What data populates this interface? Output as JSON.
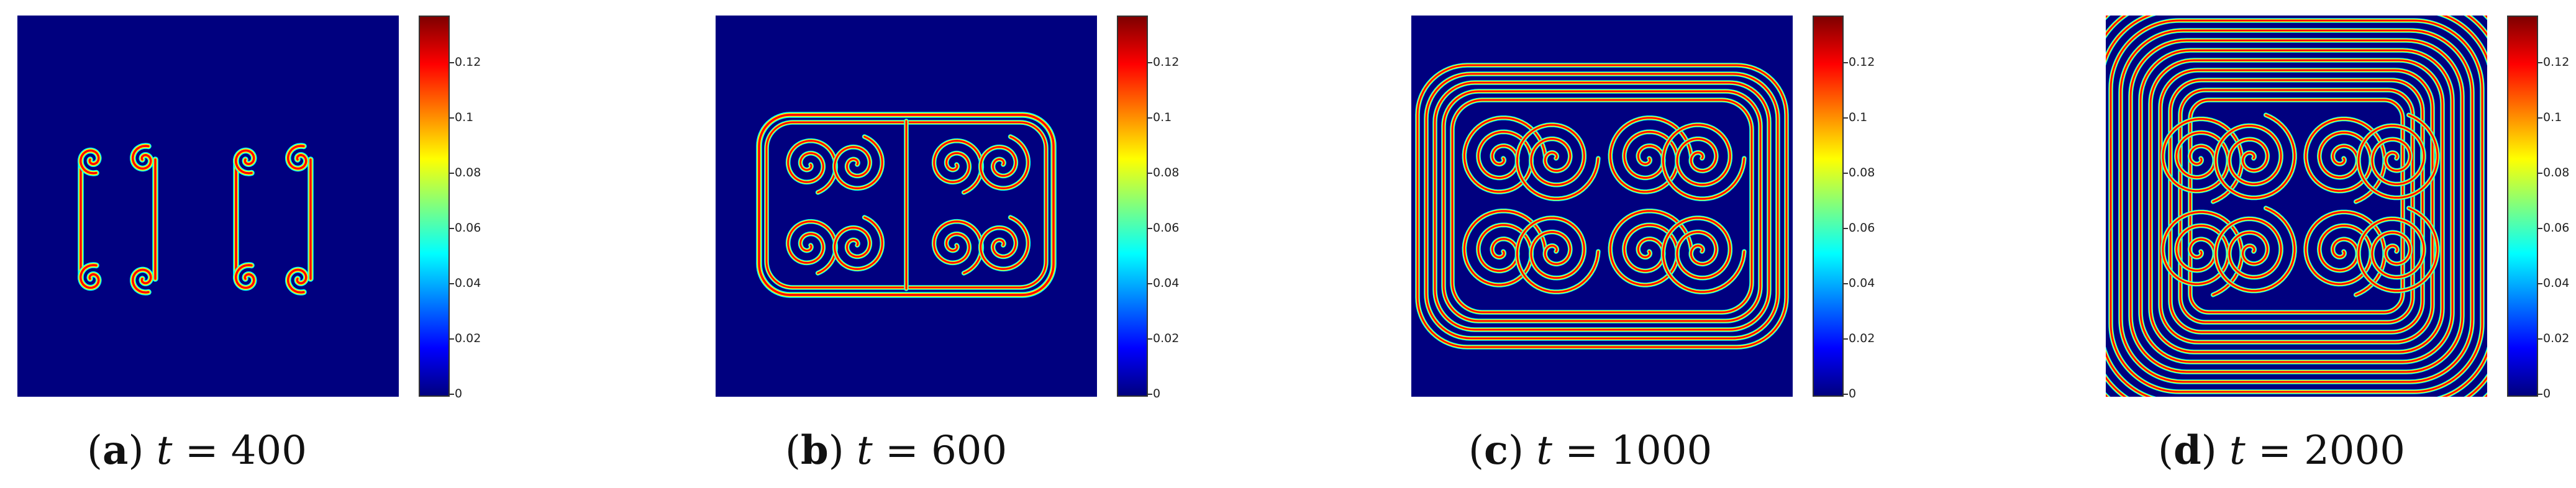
{
  "colorbar": {
    "ticks": [
      "0",
      "0.02",
      "0.04",
      "0.06",
      "0.08",
      "0.1",
      "0.12"
    ],
    "min": 0,
    "max": 0.135,
    "colormap": [
      "#00007f",
      "#0000ff",
      "#007fff",
      "#00ffff",
      "#7fff7f",
      "#ffff00",
      "#ff7f00",
      "#ff0000",
      "#7f0000"
    ]
  },
  "panels": [
    {
      "label": "a",
      "variable": "t",
      "equals": "=",
      "value": "400"
    },
    {
      "label": "b",
      "variable": "t",
      "equals": "=",
      "value": "600"
    },
    {
      "label": "c",
      "variable": "t",
      "equals": "=",
      "value": "1000"
    },
    {
      "label": "d",
      "variable": "t",
      "equals": "=",
      "value": "2000"
    }
  ],
  "colors": {
    "background_field": "#00007f",
    "wave_high": "#ff0000",
    "wave_mid": "#ffff00",
    "wave_low": "#00ffff"
  }
}
